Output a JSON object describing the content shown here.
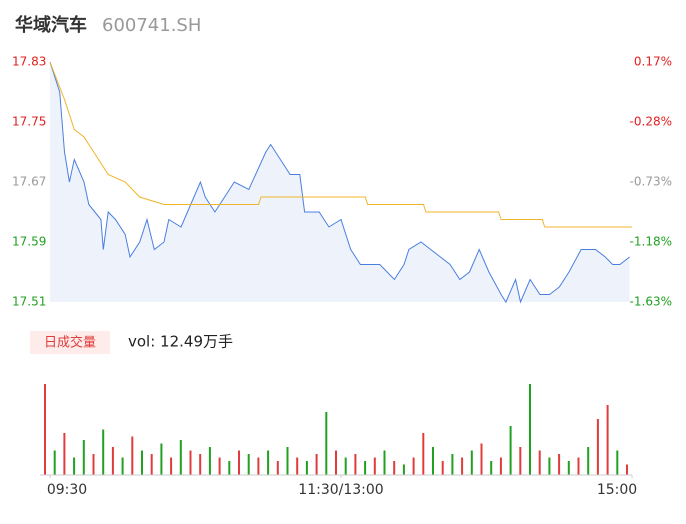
{
  "chart_data": [
    {
      "type": "line",
      "title": "华域汽车",
      "subtitle": "600741.SH",
      "x": [
        0,
        4,
        6,
        8,
        10,
        14,
        16,
        21,
        22,
        24,
        27,
        31,
        33,
        37,
        40,
        43,
        47,
        49,
        54,
        58,
        62,
        64,
        68,
        72,
        76,
        82,
        89,
        91,
        95,
        99,
        103,
        105,
        111,
        115,
        120,
        124,
        128,
        132,
        136,
        142,
        146,
        148,
        153,
        157,
        161,
        165,
        169,
        173,
        177,
        181,
        186,
        188,
        192,
        194,
        198,
        202,
        206,
        210,
        214,
        219,
        225,
        229,
        232,
        235,
        239
      ],
      "xlim": [
        0,
        240
      ],
      "series": [
        {
          "name": "price",
          "color": "#4a7fe0",
          "values": [
            17.83,
            17.79,
            17.71,
            17.67,
            17.7,
            17.67,
            17.64,
            17.62,
            17.58,
            17.63,
            17.62,
            17.6,
            17.57,
            17.59,
            17.62,
            17.58,
            17.59,
            17.62,
            17.61,
            17.64,
            17.67,
            17.65,
            17.63,
            17.65,
            17.67,
            17.66,
            17.71,
            17.72,
            17.7,
            17.68,
            17.68,
            17.63,
            17.63,
            17.61,
            17.62,
            17.58,
            17.56,
            17.56,
            17.56,
            17.54,
            17.56,
            17.58,
            17.59,
            17.58,
            17.57,
            17.56,
            17.54,
            17.55,
            17.58,
            17.55,
            17.52,
            17.51,
            17.54,
            17.51,
            17.54,
            17.52,
            17.52,
            17.53,
            17.55,
            17.58,
            17.58,
            17.57,
            17.56,
            17.56,
            17.57
          ]
        },
        {
          "name": "avg",
          "color": "#f0b429",
          "x": [
            0,
            6,
            10,
            14,
            18,
            24,
            31,
            37,
            47,
            86,
            87,
            130,
            131,
            154,
            155,
            185,
            186,
            203,
            204,
            240
          ],
          "values": [
            17.83,
            17.78,
            17.74,
            17.73,
            17.71,
            17.68,
            17.67,
            17.65,
            17.64,
            17.64,
            17.65,
            17.65,
            17.64,
            17.64,
            17.63,
            17.63,
            17.62,
            17.62,
            17.61,
            17.61
          ]
        }
      ],
      "ylim": [
        17.51,
        17.83
      ],
      "yticks": [
        17.83,
        17.75,
        17.67,
        17.59,
        17.51
      ],
      "ytick_colors": [
        "#e02020",
        "#e02020",
        "#999999",
        "#21a121",
        "#21a121"
      ],
      "y2lim": [
        -1.63,
        0.17
      ],
      "y2ticks": [
        {
          "value": 0.17,
          "label": "0.17%"
        },
        {
          "value": -0.28,
          "label": "-0.28%"
        },
        {
          "value": -0.73,
          "label": "-0.73%"
        },
        {
          "value": -1.18,
          "label": "-1.18%"
        },
        {
          "value": -1.63,
          "label": "-1.63%"
        }
      ]
    },
    {
      "type": "bar",
      "legend_button": "日成交量",
      "legend_value": "vol: 12.49万手",
      "x": [
        0,
        4,
        8,
        12,
        16,
        20,
        24,
        28,
        32,
        36,
        40,
        44,
        48,
        52,
        56,
        60,
        64,
        68,
        72,
        76,
        80,
        84,
        88,
        92,
        96,
        100,
        104,
        108,
        112,
        116,
        120,
        124,
        128,
        132,
        136,
        140,
        144,
        148,
        152,
        156,
        160,
        164,
        168,
        172,
        176,
        180,
        184,
        188,
        192,
        196,
        200,
        204,
        208,
        212,
        216,
        220,
        224,
        228,
        232,
        236,
        240
      ],
      "xlim": [
        0,
        240
      ],
      "xticks": [
        {
          "value": 0,
          "label": "09:30"
        },
        {
          "value": 120,
          "label": "11:30/13:00"
        },
        {
          "value": 240,
          "label": "15:00"
        }
      ],
      "values": [
        2600,
        700,
        1200,
        500,
        1000,
        600,
        1300,
        800,
        500,
        1100,
        700,
        600,
        900,
        500,
        1000,
        700,
        600,
        800,
        500,
        400,
        700,
        600,
        500,
        700,
        400,
        800,
        500,
        400,
        600,
        1800,
        700,
        500,
        600,
        400,
        500,
        700,
        400,
        300,
        500,
        1200,
        800,
        400,
        600,
        500,
        700,
        900,
        400,
        500,
        1400,
        800,
        2600,
        700,
        500,
        600,
        400,
        500,
        800,
        1600,
        2000,
        700,
        300
      ],
      "colors": [
        "#e03c3c",
        "#21a121",
        "#e03c3c",
        "#21a121",
        "#21a121",
        "#e03c3c",
        "#21a121",
        "#e03c3c",
        "#21a121",
        "#e03c3c",
        "#21a121",
        "#e03c3c",
        "#21a121",
        "#e03c3c",
        "#21a121",
        "#e03c3c",
        "#e03c3c",
        "#21a121",
        "#e03c3c",
        "#21a121",
        "#e03c3c",
        "#21a121",
        "#e03c3c",
        "#21a121",
        "#e03c3c",
        "#21a121",
        "#e03c3c",
        "#21a121",
        "#e03c3c",
        "#21a121",
        "#e03c3c",
        "#21a121",
        "#e03c3c",
        "#21a121",
        "#e03c3c",
        "#21a121",
        "#e03c3c",
        "#21a121",
        "#e03c3c",
        "#e03c3c",
        "#21a121",
        "#e03c3c",
        "#21a121",
        "#e03c3c",
        "#21a121",
        "#e03c3c",
        "#21a121",
        "#e03c3c",
        "#21a121",
        "#e03c3c",
        "#21a121",
        "#e03c3c",
        "#21a121",
        "#e03c3c",
        "#21a121",
        "#e03c3c",
        "#21a121",
        "#e03c3c",
        "#e03c3c",
        "#21a121",
        "#e03c3c"
      ],
      "ylim": [
        0,
        3000
      ]
    }
  ]
}
